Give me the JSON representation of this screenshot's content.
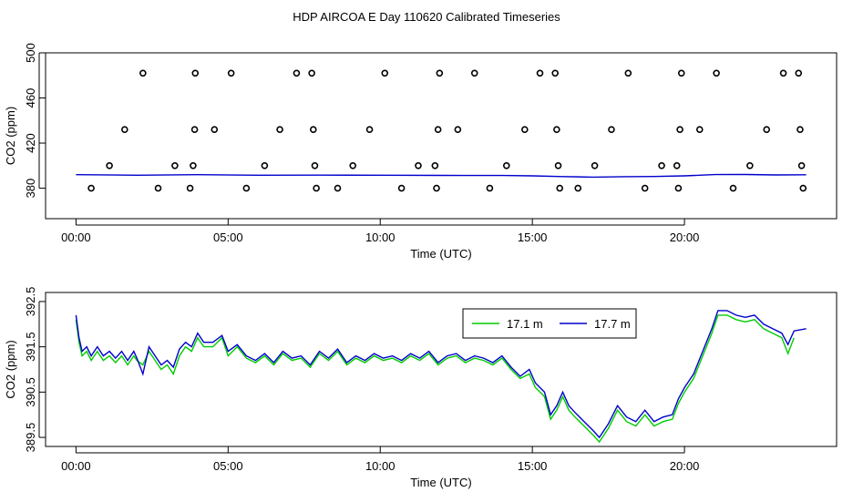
{
  "title": "HDP AIRCOA E  Day 110620  Calibrated Timeseries",
  "colors": {
    "blue": "#0000cc",
    "green": "#00cc00",
    "axis": "#000000"
  },
  "chart_data": [
    {
      "type": "scatter",
      "xlabel": "Time (UTC)",
      "ylabel": "CO2 (ppm)",
      "xlim": [
        -1.0,
        25.0
      ],
      "ylim": [
        353.0,
        500.0
      ],
      "x_ticks": [
        0,
        5,
        10,
        15,
        20
      ],
      "x_tick_labels": [
        "00:00",
        "05:00",
        "10:00",
        "15:00",
        "20:00"
      ],
      "y_ticks": [
        380,
        420,
        460,
        500
      ],
      "y_tick_labels": [
        "380",
        "420",
        "460",
        "500"
      ],
      "series": [
        {
          "style": "points",
          "points": [
            [
              0.5,
              380
            ],
            [
              1.1,
              400
            ],
            [
              1.6,
              432
            ],
            [
              2.2,
              482
            ],
            [
              2.7,
              380
            ],
            [
              3.25,
              400
            ],
            [
              3.75,
              380
            ],
            [
              3.85,
              400
            ],
            [
              3.9,
              432
            ],
            [
              3.92,
              482
            ],
            [
              4.55,
              432
            ],
            [
              5.1,
              482
            ],
            [
              5.6,
              380
            ],
            [
              6.2,
              400
            ],
            [
              6.7,
              432
            ],
            [
              7.25,
              482
            ],
            [
              7.75,
              482
            ],
            [
              7.8,
              432
            ],
            [
              7.85,
              400
            ],
            [
              7.9,
              380
            ],
            [
              8.6,
              380
            ],
            [
              9.1,
              400
            ],
            [
              9.65,
              432
            ],
            [
              10.15,
              482
            ],
            [
              10.7,
              380
            ],
            [
              11.25,
              400
            ],
            [
              11.8,
              400
            ],
            [
              11.85,
              380
            ],
            [
              11.9,
              432
            ],
            [
              11.95,
              482
            ],
            [
              12.55,
              432
            ],
            [
              13.1,
              482
            ],
            [
              13.6,
              380
            ],
            [
              14.15,
              400
            ],
            [
              14.75,
              432
            ],
            [
              15.25,
              482
            ],
            [
              15.75,
              482
            ],
            [
              15.8,
              432
            ],
            [
              15.85,
              400
            ],
            [
              15.9,
              380
            ],
            [
              16.5,
              380
            ],
            [
              17.05,
              400
            ],
            [
              17.6,
              432
            ],
            [
              18.15,
              482
            ],
            [
              18.7,
              380
            ],
            [
              19.25,
              400
            ],
            [
              19.75,
              400
            ],
            [
              19.8,
              380
            ],
            [
              19.85,
              432
            ],
            [
              19.9,
              482
            ],
            [
              20.5,
              432
            ],
            [
              21.05,
              482
            ],
            [
              21.6,
              380
            ],
            [
              22.15,
              400
            ],
            [
              22.7,
              432
            ],
            [
              23.25,
              482
            ],
            [
              23.75,
              482
            ],
            [
              23.8,
              432
            ],
            [
              23.85,
              400
            ],
            [
              23.9,
              380
            ]
          ]
        },
        {
          "style": "line",
          "points": [
            [
              0,
              392
            ],
            [
              2,
              391.5
            ],
            [
              4,
              392
            ],
            [
              6,
              391.5
            ],
            [
              8,
              391.6
            ],
            [
              10,
              391.5
            ],
            [
              12,
              391.4
            ],
            [
              14,
              391.3
            ],
            [
              15,
              391.0
            ],
            [
              16,
              390.3
            ],
            [
              17,
              389.8
            ],
            [
              18,
              390.2
            ],
            [
              19,
              390.4
            ],
            [
              20,
              391.0
            ],
            [
              21,
              392.1
            ],
            [
              22,
              392.2
            ],
            [
              23,
              391.8
            ],
            [
              24,
              391.9
            ]
          ]
        }
      ]
    },
    {
      "type": "line",
      "xlabel": "Time (UTC)",
      "ylabel": "CO2 (ppm)",
      "xlim": [
        -1.0,
        25.0
      ],
      "ylim": [
        389.3,
        392.7
      ],
      "x_ticks": [
        0,
        5,
        10,
        15,
        20
      ],
      "x_tick_labels": [
        "00:00",
        "05:00",
        "10:00",
        "15:00",
        "20:00"
      ],
      "y_ticks": [
        389.5,
        390.5,
        391.5,
        392.5
      ],
      "y_tick_labels": [
        "389.5",
        "390.5",
        "391.5",
        "392.5"
      ],
      "legend": "top-right",
      "series": [
        {
          "name": "17.1 m",
          "color": "#00cc00",
          "points": [
            [
              0.0,
              392.1
            ],
            [
              0.1,
              391.6
            ],
            [
              0.2,
              391.3
            ],
            [
              0.35,
              391.4
            ],
            [
              0.5,
              391.2
            ],
            [
              0.7,
              391.4
            ],
            [
              0.9,
              391.2
            ],
            [
              1.1,
              391.3
            ],
            [
              1.3,
              391.15
            ],
            [
              1.5,
              391.3
            ],
            [
              1.7,
              391.1
            ],
            [
              1.9,
              391.3
            ],
            [
              2.0,
              391.2
            ],
            [
              2.2,
              391.1
            ],
            [
              2.4,
              391.4
            ],
            [
              2.6,
              391.2
            ],
            [
              2.8,
              391.0
            ],
            [
              3.0,
              391.1
            ],
            [
              3.2,
              390.9
            ],
            [
              3.4,
              391.3
            ],
            [
              3.6,
              391.5
            ],
            [
              3.8,
              391.4
            ],
            [
              4.0,
              391.7
            ],
            [
              4.2,
              391.5
            ],
            [
              4.5,
              391.5
            ],
            [
              4.8,
              391.7
            ],
            [
              5.0,
              391.3
            ],
            [
              5.3,
              391.5
            ],
            [
              5.6,
              391.25
            ],
            [
              5.9,
              391.15
            ],
            [
              6.2,
              391.3
            ],
            [
              6.5,
              391.1
            ],
            [
              6.8,
              391.35
            ],
            [
              7.1,
              391.2
            ],
            [
              7.4,
              391.25
            ],
            [
              7.7,
              391.05
            ],
            [
              8.0,
              391.35
            ],
            [
              8.3,
              391.2
            ],
            [
              8.6,
              391.4
            ],
            [
              8.9,
              391.1
            ],
            [
              9.2,
              391.25
            ],
            [
              9.5,
              391.15
            ],
            [
              9.8,
              391.3
            ],
            [
              10.1,
              391.2
            ],
            [
              10.4,
              391.25
            ],
            [
              10.7,
              391.15
            ],
            [
              11.0,
              391.3
            ],
            [
              11.3,
              391.2
            ],
            [
              11.6,
              391.35
            ],
            [
              11.9,
              391.1
            ],
            [
              12.2,
              391.25
            ],
            [
              12.5,
              391.3
            ],
            [
              12.8,
              391.15
            ],
            [
              13.1,
              391.25
            ],
            [
              13.4,
              391.2
            ],
            [
              13.7,
              391.1
            ],
            [
              14.0,
              391.25
            ],
            [
              14.3,
              391.0
            ],
            [
              14.6,
              390.8
            ],
            [
              14.9,
              390.9
            ],
            [
              15.1,
              390.6
            ],
            [
              15.4,
              390.4
            ],
            [
              15.6,
              389.9
            ],
            [
              15.8,
              390.1
            ],
            [
              16.0,
              390.4
            ],
            [
              16.2,
              390.1
            ],
            [
              16.4,
              389.95
            ],
            [
              16.7,
              389.75
            ],
            [
              17.0,
              389.55
            ],
            [
              17.2,
              389.4
            ],
            [
              17.5,
              389.7
            ],
            [
              17.8,
              390.1
            ],
            [
              18.1,
              389.85
            ],
            [
              18.4,
              389.75
            ],
            [
              18.7,
              390.0
            ],
            [
              19.0,
              389.75
            ],
            [
              19.3,
              389.85
            ],
            [
              19.6,
              389.9
            ],
            [
              19.8,
              390.25
            ],
            [
              20.0,
              390.5
            ],
            [
              20.3,
              390.8
            ],
            [
              20.6,
              391.3
            ],
            [
              20.9,
              391.8
            ],
            [
              21.1,
              392.2
            ],
            [
              21.4,
              392.2
            ],
            [
              21.7,
              392.1
            ],
            [
              22.0,
              392.05
            ],
            [
              22.3,
              392.1
            ],
            [
              22.6,
              391.9
            ],
            [
              22.9,
              391.8
            ],
            [
              23.2,
              391.7
            ],
            [
              23.4,
              391.35
            ],
            [
              23.6,
              391.7
            ]
          ]
        },
        {
          "name": "17.7 m",
          "color": "#0000cc",
          "points": [
            [
              0.0,
              392.2
            ],
            [
              0.1,
              391.7
            ],
            [
              0.2,
              391.4
            ],
            [
              0.35,
              391.5
            ],
            [
              0.5,
              391.3
            ],
            [
              0.7,
              391.5
            ],
            [
              0.9,
              391.3
            ],
            [
              1.1,
              391.4
            ],
            [
              1.3,
              391.25
            ],
            [
              1.5,
              391.4
            ],
            [
              1.7,
              391.2
            ],
            [
              1.9,
              391.4
            ],
            [
              2.0,
              391.25
            ],
            [
              2.2,
              390.9
            ],
            [
              2.4,
              391.5
            ],
            [
              2.6,
              391.3
            ],
            [
              2.8,
              391.1
            ],
            [
              3.0,
              391.2
            ],
            [
              3.2,
              391.05
            ],
            [
              3.4,
              391.45
            ],
            [
              3.6,
              391.6
            ],
            [
              3.8,
              391.5
            ],
            [
              4.0,
              391.8
            ],
            [
              4.2,
              391.6
            ],
            [
              4.5,
              391.6
            ],
            [
              4.8,
              391.75
            ],
            [
              5.0,
              391.4
            ],
            [
              5.3,
              391.55
            ],
            [
              5.6,
              391.3
            ],
            [
              5.9,
              391.2
            ],
            [
              6.2,
              391.35
            ],
            [
              6.5,
              391.15
            ],
            [
              6.8,
              391.4
            ],
            [
              7.1,
              391.25
            ],
            [
              7.4,
              391.3
            ],
            [
              7.7,
              391.1
            ],
            [
              8.0,
              391.4
            ],
            [
              8.3,
              391.25
            ],
            [
              8.6,
              391.45
            ],
            [
              8.9,
              391.15
            ],
            [
              9.2,
              391.3
            ],
            [
              9.5,
              391.2
            ],
            [
              9.8,
              391.35
            ],
            [
              10.1,
              391.25
            ],
            [
              10.4,
              391.3
            ],
            [
              10.7,
              391.2
            ],
            [
              11.0,
              391.35
            ],
            [
              11.3,
              391.25
            ],
            [
              11.6,
              391.4
            ],
            [
              11.9,
              391.15
            ],
            [
              12.2,
              391.3
            ],
            [
              12.5,
              391.35
            ],
            [
              12.8,
              391.2
            ],
            [
              13.1,
              391.3
            ],
            [
              13.4,
              391.25
            ],
            [
              13.7,
              391.15
            ],
            [
              14.0,
              391.3
            ],
            [
              14.3,
              391.05
            ],
            [
              14.6,
              390.85
            ],
            [
              14.9,
              391.0
            ],
            [
              15.1,
              390.7
            ],
            [
              15.4,
              390.5
            ],
            [
              15.6,
              390.0
            ],
            [
              15.8,
              390.2
            ],
            [
              16.0,
              390.5
            ],
            [
              16.2,
              390.2
            ],
            [
              16.4,
              390.05
            ],
            [
              16.7,
              389.85
            ],
            [
              17.0,
              389.65
            ],
            [
              17.2,
              389.5
            ],
            [
              17.5,
              389.8
            ],
            [
              17.8,
              390.2
            ],
            [
              18.1,
              389.95
            ],
            [
              18.4,
              389.85
            ],
            [
              18.7,
              390.1
            ],
            [
              19.0,
              389.85
            ],
            [
              19.3,
              389.95
            ],
            [
              19.6,
              390.0
            ],
            [
              19.8,
              390.35
            ],
            [
              20.0,
              390.6
            ],
            [
              20.3,
              390.9
            ],
            [
              20.6,
              391.4
            ],
            [
              20.9,
              391.9
            ],
            [
              21.1,
              392.3
            ],
            [
              21.4,
              392.3
            ],
            [
              21.7,
              392.2
            ],
            [
              22.0,
              392.15
            ],
            [
              22.3,
              392.2
            ],
            [
              22.6,
              392.0
            ],
            [
              22.9,
              391.9
            ],
            [
              23.2,
              391.8
            ],
            [
              23.4,
              391.55
            ],
            [
              23.6,
              391.85
            ],
            [
              24.0,
              391.9
            ]
          ]
        }
      ]
    }
  ]
}
